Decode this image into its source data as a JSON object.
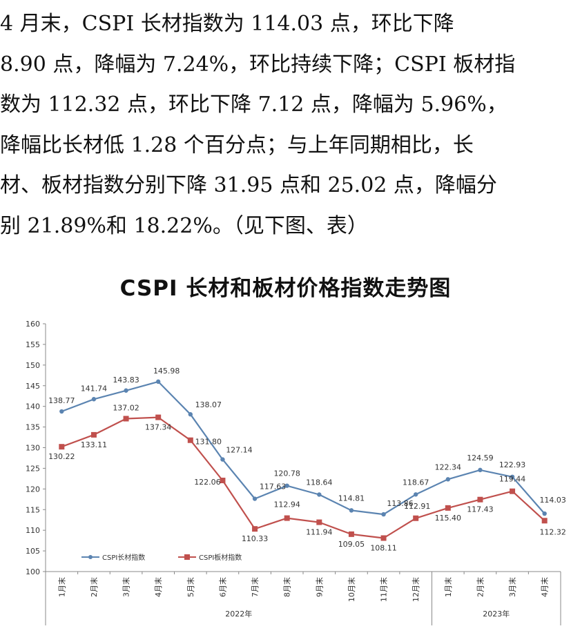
{
  "paragraph_lines": [
    "   4 月末，CSPI 长材指数为 114.03 点，环比下降",
    "8.90 点，降幅为 7.24%，环比持续下降；CSPI 板材指",
    "数为 112.32 点，环比下降 7.12 点，降幅为 5.96%，",
    "降幅比长材低 1.28 个百分点；与上年同期相比，长",
    "材、板材指数分别下降 31.95 点和 25.02 点，降幅分",
    "别 21.89%和 18.22%。（见下图、表）"
  ],
  "chart_data": {
    "type": "line",
    "title": "CSPI 长材和板材价格指数走势图",
    "categories": [
      "1月末",
      "2月末",
      "3月末",
      "4月末",
      "5月末",
      "6月末",
      "7月末",
      "8月末",
      "9月末",
      "10月末",
      "11月末",
      "12月末",
      "1月末",
      "2月末",
      "3月末",
      "4月末"
    ],
    "year_groups": [
      {
        "label": "2022年",
        "count": 12
      },
      {
        "label": "2023年",
        "count": 4
      }
    ],
    "ylim": [
      100,
      160
    ],
    "yticks": [
      100,
      105,
      110,
      115,
      120,
      125,
      130,
      135,
      140,
      145,
      150,
      155,
      160
    ],
    "grid": false,
    "legend_position": "bottom-left",
    "series": [
      {
        "name": "CSPI长材指数",
        "color": "#5b84b1",
        "marker": "circle",
        "values": [
          138.77,
          141.74,
          143.83,
          145.98,
          138.07,
          127.14,
          117.63,
          120.78,
          118.64,
          114.81,
          113.86,
          118.67,
          122.34,
          124.59,
          122.93,
          114.03
        ],
        "labels": [
          "138.77",
          "141.74",
          "143.83",
          "145.98",
          "138.07",
          "127.14",
          "117.63",
          "120.78",
          "118.64",
          "114.81",
          "113.86",
          "118.67",
          "122.34",
          "124.59",
          "122.93",
          "114.03"
        ]
      },
      {
        "name": "CSPI板材指数",
        "color": "#c0504d",
        "marker": "square",
        "values": [
          130.22,
          133.11,
          137.02,
          137.34,
          131.8,
          122.06,
          110.33,
          112.94,
          111.94,
          109.05,
          108.11,
          112.91,
          115.4,
          117.43,
          119.44,
          112.32
        ],
        "labels": [
          "130.22",
          "133.11",
          "137.02",
          "137.34",
          "131.80",
          "122.06",
          "110.33",
          "112.94",
          "111.94",
          "109.05",
          "108.11",
          "112.91",
          "115.40",
          "117.43",
          "119.44",
          "112.32"
        ]
      }
    ]
  }
}
